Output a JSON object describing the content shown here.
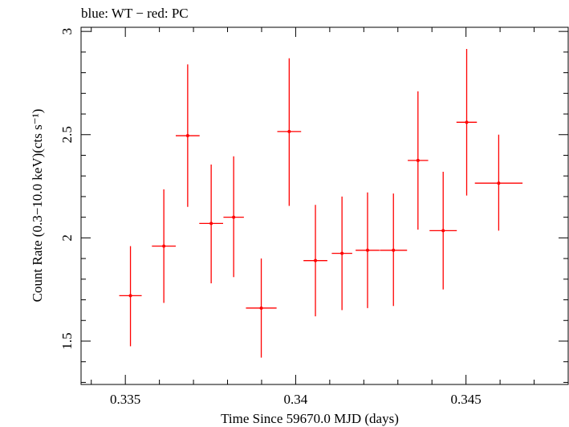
{
  "chart_data": {
    "type": "scatter",
    "title": "blue: WT − red: PC",
    "xlabel": "Time Since 59670.0 MJD (days)",
    "ylabel": "Count Rate (0.3−10.0 keV)(cts s⁻¹)",
    "xlim": [
      0.3337,
      0.348
    ],
    "ylim": [
      1.29,
      3.02
    ],
    "x_ticks": [
      {
        "value": 0.335,
        "label": "0.335"
      },
      {
        "value": 0.34,
        "label": "0.34"
      },
      {
        "value": 0.345,
        "label": "0.345"
      }
    ],
    "y_ticks": [
      {
        "value": 1.5,
        "label": "1.5"
      },
      {
        "value": 2,
        "label": "2"
      },
      {
        "value": 2.5,
        "label": "2.5"
      },
      {
        "value": 3,
        "label": "3"
      }
    ],
    "grid": false,
    "series": [
      {
        "color": "#ff0000",
        "points": [
          {
            "x": 0.33515,
            "xerr": 0.00033,
            "y": 1.72,
            "yerr_low": 0.245,
            "yerr_high": 0.24
          },
          {
            "x": 0.33613,
            "xerr": 0.00035,
            "y": 1.96,
            "yerr_low": 0.275,
            "yerr_high": 0.275
          },
          {
            "x": 0.33683,
            "xerr": 0.00035,
            "y": 2.495,
            "yerr_low": 0.345,
            "yerr_high": 0.345
          },
          {
            "x": 0.33752,
            "xerr": 0.00035,
            "y": 2.07,
            "yerr_low": 0.29,
            "yerr_high": 0.285
          },
          {
            "x": 0.33818,
            "xerr": 0.0003,
            "y": 2.1,
            "yerr_low": 0.29,
            "yerr_high": 0.295
          },
          {
            "x": 0.33899,
            "xerr": 0.00045,
            "y": 1.66,
            "yerr_low": 0.24,
            "yerr_high": 0.24
          },
          {
            "x": 0.33981,
            "xerr": 0.00035,
            "y": 2.515,
            "yerr_low": 0.36,
            "yerr_high": 0.355
          },
          {
            "x": 0.34058,
            "xerr": 0.00035,
            "y": 1.89,
            "yerr_low": 0.27,
            "yerr_high": 0.27
          },
          {
            "x": 0.34136,
            "xerr": 0.0003,
            "y": 1.925,
            "yerr_low": 0.275,
            "yerr_high": 0.275
          },
          {
            "x": 0.34211,
            "xerr": 0.00035,
            "y": 1.94,
            "yerr_low": 0.28,
            "yerr_high": 0.28
          },
          {
            "x": 0.34287,
            "xerr": 0.0004,
            "y": 1.94,
            "yerr_low": 0.27,
            "yerr_high": 0.275
          },
          {
            "x": 0.34359,
            "xerr": 0.0003,
            "y": 2.375,
            "yerr_low": 0.335,
            "yerr_high": 0.335
          },
          {
            "x": 0.34433,
            "xerr": 0.0004,
            "y": 2.035,
            "yerr_low": 0.285,
            "yerr_high": 0.285
          },
          {
            "x": 0.34502,
            "xerr": 0.0003,
            "y": 2.56,
            "yerr_low": 0.355,
            "yerr_high": 0.355
          },
          {
            "x": 0.34596,
            "xerr": 0.0007,
            "y": 2.265,
            "yerr_low": 0.23,
            "yerr_high": 0.235
          }
        ]
      }
    ]
  }
}
